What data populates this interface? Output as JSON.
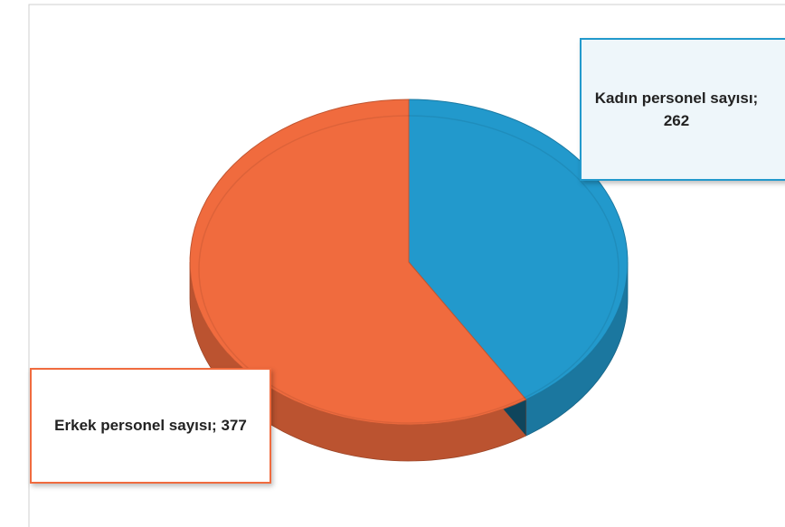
{
  "chart_data": {
    "type": "pie3d",
    "categories": [
      "Kadın personel sayısı",
      "Erkek personel sayısı"
    ],
    "values": [
      262,
      377
    ],
    "value_labels": [
      "Kadın personel sayısı; 262",
      "Erkek personel sayısı; 377"
    ],
    "colors": [
      "#2299cc",
      "#f06b3e"
    ]
  }
}
